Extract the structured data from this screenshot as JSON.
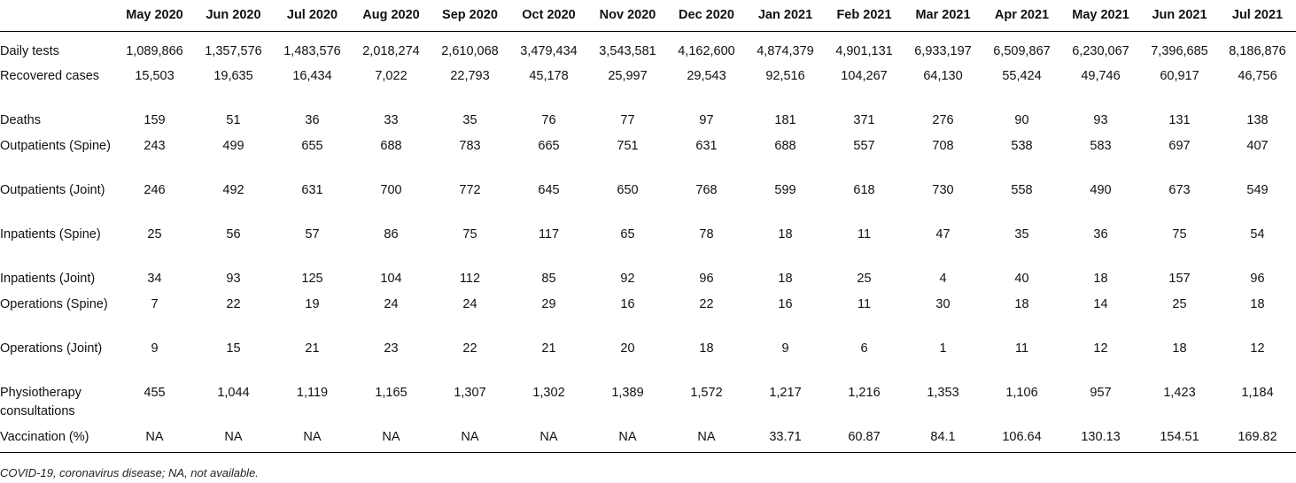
{
  "table": {
    "header": [
      "",
      "May 2020",
      "Jun 2020",
      "Jul 2020",
      "Aug 2020",
      "Sep 2020",
      "Oct 2020",
      "Nov 2020",
      "Dec 2020",
      "Jan 2021",
      "Feb 2021",
      "Mar 2021",
      "Apr 2021",
      "May 2021",
      "Jun 2021",
      "Jul 2021"
    ],
    "rows": [
      {
        "label": "Daily tests",
        "values": [
          "1,089,866",
          "1,357,576",
          "1,483,576",
          "2,018,274",
          "2,610,068",
          "3,479,434",
          "3,543,581",
          "4,162,600",
          "4,874,379",
          "4,901,131",
          "6,933,197",
          "6,509,867",
          "6,230,067",
          "7,396,685",
          "8,186,876"
        ]
      },
      {
        "label": "Recovered cases",
        "values": [
          "15,503",
          "19,635",
          "16,434",
          "7,022",
          "22,793",
          "45,178",
          "25,997",
          "29,543",
          "92,516",
          "104,267",
          "64,130",
          "55,424",
          "49,746",
          "60,917",
          "46,756"
        ]
      },
      {
        "label": "Deaths",
        "values": [
          "159",
          "51",
          "36",
          "33",
          "35",
          "76",
          "77",
          "97",
          "181",
          "371",
          "276",
          "90",
          "93",
          "131",
          "138"
        ]
      },
      {
        "label": "Outpatients (Spine)",
        "values": [
          "243",
          "499",
          "655",
          "688",
          "783",
          "665",
          "751",
          "631",
          "688",
          "557",
          "708",
          "538",
          "583",
          "697",
          "407"
        ]
      },
      {
        "label": "Outpatients (Joint)",
        "values": [
          "246",
          "492",
          "631",
          "700",
          "772",
          "645",
          "650",
          "768",
          "599",
          "618",
          "730",
          "558",
          "490",
          "673",
          "549"
        ]
      },
      {
        "label": "Inpatients (Spine)",
        "values": [
          "25",
          "56",
          "57",
          "86",
          "75",
          "117",
          "65",
          "78",
          "18",
          "11",
          "47",
          "35",
          "36",
          "75",
          "54"
        ]
      },
      {
        "label": "Inpatients (Joint)",
        "values": [
          "34",
          "93",
          "125",
          "104",
          "112",
          "85",
          "92",
          "96",
          "18",
          "25",
          "4",
          "40",
          "18",
          "157",
          "96"
        ]
      },
      {
        "label": "Operations (Spine)",
        "values": [
          "7",
          "22",
          "19",
          "24",
          "24",
          "29",
          "16",
          "22",
          "16",
          "11",
          "30",
          "18",
          "14",
          "25",
          "18"
        ]
      },
      {
        "label": "Operations (Joint)",
        "values": [
          "9",
          "15",
          "21",
          "23",
          "22",
          "21",
          "20",
          "18",
          "9",
          "6",
          "1",
          "11",
          "12",
          "18",
          "12"
        ]
      },
      {
        "label": "Physiotherapy consultations",
        "values": [
          "455",
          "1,044",
          "1,119",
          "1,165",
          "1,307",
          "1,302",
          "1,389",
          "1,572",
          "1,217",
          "1,216",
          "1,353",
          "1,106",
          "957",
          "1,423",
          "1,184"
        ]
      },
      {
        "label": "Vaccination (%)",
        "values": [
          "NA",
          "NA",
          "NA",
          "NA",
          "NA",
          "NA",
          "NA",
          "NA",
          "33.71",
          "60.87",
          "84.1",
          "106.64",
          "130.13",
          "154.51",
          "169.82"
        ]
      }
    ]
  },
  "footnote": "COVID-19, coronavirus disease; NA, not available."
}
